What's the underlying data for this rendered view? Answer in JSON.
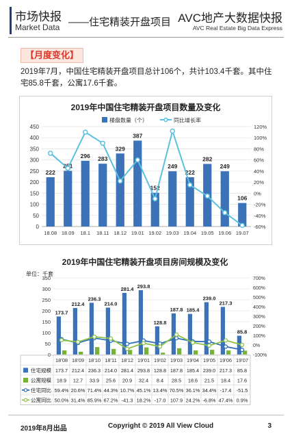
{
  "header": {
    "title_cn": "市场快报",
    "title_en": "Market Data",
    "section": "——住宅精装开盘项目",
    "brand_cn": "AVC地产大数据快报",
    "brand_en": "AVC  Real Estate Big Data Express"
  },
  "section_tag": "【月度变化】",
  "paragraph": "2019年7月，中国住宅精装开盘项目总计106个，共计103.4千套。其中住宅85.8千套，公寓17.6千套。",
  "footer": {
    "left": "2019年8月出品",
    "center": "Copyright © 2019 All View Cloud",
    "page": "3"
  },
  "colors": {
    "bar_blue": "#3c73b8",
    "line_cyan": "#5bc0de",
    "bar_green": "#79b13b",
    "line_blue": "#2f6fba",
    "line_green": "#8dc24a",
    "tag_red": "#d93a2b"
  },
  "chart_data": [
    {
      "type": "bar",
      "title": "2019年中国住宅精装开盘项目数量及变化",
      "categories": [
        "18.08",
        "18.09",
        "18.1",
        "18.11",
        "18.12",
        "19.01",
        "19.02",
        "19.03",
        "19.04",
        "19.05",
        "19.06",
        "19.07"
      ],
      "series": [
        {
          "name": "楼盘数量（个）",
          "type": "bar",
          "values": [
            222,
            251,
            296,
            283,
            329,
            387,
            152,
            249,
            222,
            282,
            249,
            106
          ]
        },
        {
          "name": "同比增长率",
          "type": "line",
          "axis": "right",
          "values": [
            72,
            45,
            110,
            90,
            22,
            60,
            -10,
            112,
            15,
            -5,
            -35,
            -58
          ]
        }
      ],
      "ylim": [
        0,
        450
      ],
      "y_ticks": [
        "0",
        "50",
        "100",
        "150",
        "200",
        "250",
        "300",
        "350",
        "400",
        "450"
      ],
      "y2lim": [
        -60,
        120
      ],
      "y2_ticks": [
        "-60%",
        "-40%",
        "-20%",
        "0%",
        "20%",
        "40%",
        "60%",
        "80%",
        "100%",
        "120%"
      ],
      "legend": "top"
    },
    {
      "type": "bar",
      "title": "2019年中国住宅精装开盘项目房间规模及变化",
      "unit_label": "单位：千套",
      "categories": [
        "18'08",
        "18'09",
        "18'10",
        "18'11",
        "18'12",
        "19'01",
        "19'02",
        "19'03",
        "19'04",
        "19'05",
        "19'06",
        "19'07"
      ],
      "series": [
        {
          "name": "住宅规模",
          "type": "bar",
          "values": [
            173.7,
            212.4,
            236.3,
            214.0,
            281.4,
            293.8,
            128.8,
            187.8,
            185.4,
            239.0,
            217.3,
            85.8
          ]
        },
        {
          "name": "公寓规模",
          "type": "bar",
          "values": [
            18.9,
            12.7,
            33.9,
            25.6,
            20.9,
            32.4,
            8.4,
            28.5,
            18.6,
            21.5,
            18.4,
            17.6
          ]
        },
        {
          "name": "住宅同比",
          "type": "line",
          "axis": "right",
          "values": [
            "59.4%",
            "20.6%",
            "71.4%",
            "44.3%",
            "10.7%",
            "45.1%",
            "13.4%",
            "70.5%",
            "36.1%",
            "34.4%",
            "-17.4",
            "-51.5"
          ]
        },
        {
          "name": "公寓同比",
          "type": "line",
          "axis": "right",
          "values": [
            "50.0%",
            "31.4%",
            "85.9%",
            "67.2%",
            "-41.3",
            "18.2%",
            "-17.0",
            "107.9",
            "24.2%",
            "-6.8%",
            "47.4%",
            "0.9%"
          ]
        }
      ],
      "line_values_numeric": {
        "住宅同比": [
          59.4,
          20.6,
          71.4,
          44.3,
          10.7,
          45.1,
          13.4,
          70.5,
          36.1,
          34.4,
          -17.4,
          -51.5
        ],
        "公寓同比": [
          50.0,
          31.4,
          85.9,
          67.2,
          -41.3,
          18.2,
          -17.0,
          107.9,
          24.2,
          -6.8,
          47.4,
          0.9
        ]
      },
      "ylim": [
        0,
        350
      ],
      "y_ticks": [
        "0",
        "50",
        "100",
        "150",
        "200",
        "250",
        "300",
        "350"
      ],
      "y2lim": [
        -100,
        700
      ],
      "y2_ticks": [
        "-100%",
        "0%",
        "100%",
        "200%",
        "300%",
        "400%",
        "500%",
        "600%",
        "700%"
      ]
    }
  ]
}
